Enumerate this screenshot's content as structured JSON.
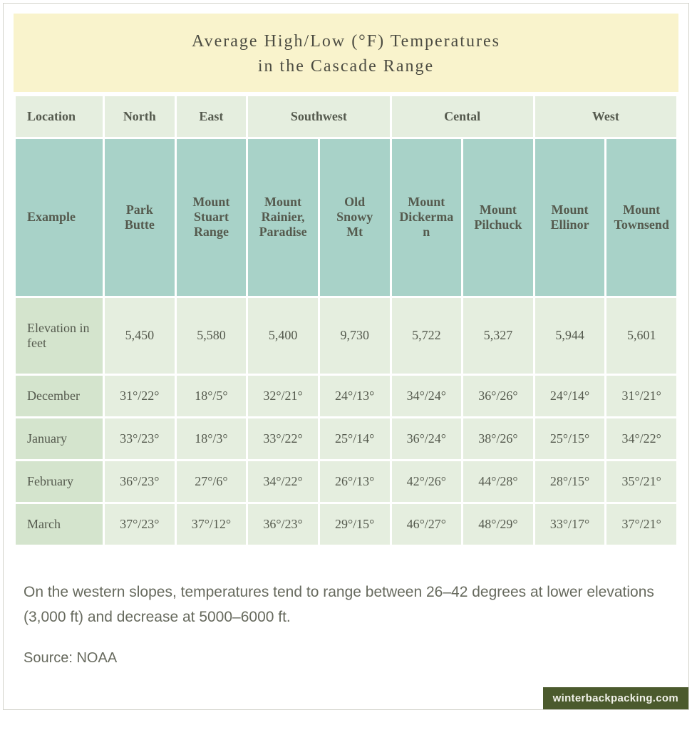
{
  "title_line1": "Average High/Low (°F) Temperatures",
  "title_line2": "in the Cascade Range",
  "colors": {
    "title_bg": "#f9f3cc",
    "header_light": "#e5eedf",
    "header_teal": "#a8d2c8",
    "row_label_bg": "#d4e4cd",
    "cell_bg": "#e5eedf",
    "text": "#555a4e",
    "footnote_text": "#676a5e",
    "brand_bg": "#4b5a2d",
    "brand_text": "#f2f2ea",
    "card_border": "#d3d3cb"
  },
  "location_row": {
    "label": "Location",
    "groups": [
      {
        "name": "North",
        "span": 1
      },
      {
        "name": "East",
        "span": 1
      },
      {
        "name": "Southwest",
        "span": 2
      },
      {
        "name": "Cental",
        "span": 2
      },
      {
        "name": "West",
        "span": 2
      }
    ]
  },
  "example_row": {
    "label": "Example",
    "examples": [
      "Park Butte",
      "Mount Stuart Range",
      "Mount Rainier, Paradise",
      "Old Snowy Mt",
      "Mount Dickerman",
      "Mount Pilchuck",
      "Mount Ellinor",
      "Mount Townsend"
    ]
  },
  "rows": [
    {
      "label": "Elevation in feet",
      "cells": [
        "5,450",
        "5,580",
        "5,400",
        "9,730",
        "5,722",
        "5,327",
        "5,944",
        "5,601"
      ],
      "kind": "elev"
    },
    {
      "label": "December",
      "cells": [
        "31°/22°",
        "18°/5°",
        "32°/21°",
        "24°/13°",
        "34°/24°",
        "36°/26°",
        "24°/14°",
        "31°/21°"
      ]
    },
    {
      "label": "January",
      "cells": [
        "33°/23°",
        "18°/3°",
        "33°/22°",
        "25°/14°",
        "36°/24°",
        "38°/26°",
        "25°/15°",
        "34°/22°"
      ]
    },
    {
      "label": "February",
      "cells": [
        "36°/23°",
        "27°/6°",
        "34°/22°",
        "26°/13°",
        "42°/26°",
        "44°/28°",
        "28°/15°",
        "35°/21°"
      ]
    },
    {
      "label": "March",
      "cells": [
        "37°/23°",
        "37°/12°",
        "36°/23°",
        "29°/15°",
        "46°/27°",
        "48°/29°",
        "33°/17°",
        "37°/21°"
      ]
    }
  ],
  "footnote": "On the western slopes, temperatures tend to range between 26–42 degrees at lower elevations (3,000 ft) and decrease at 5000–6000 ft.",
  "source": "Source: NOAA",
  "brand": "winterbackpacking.com"
}
